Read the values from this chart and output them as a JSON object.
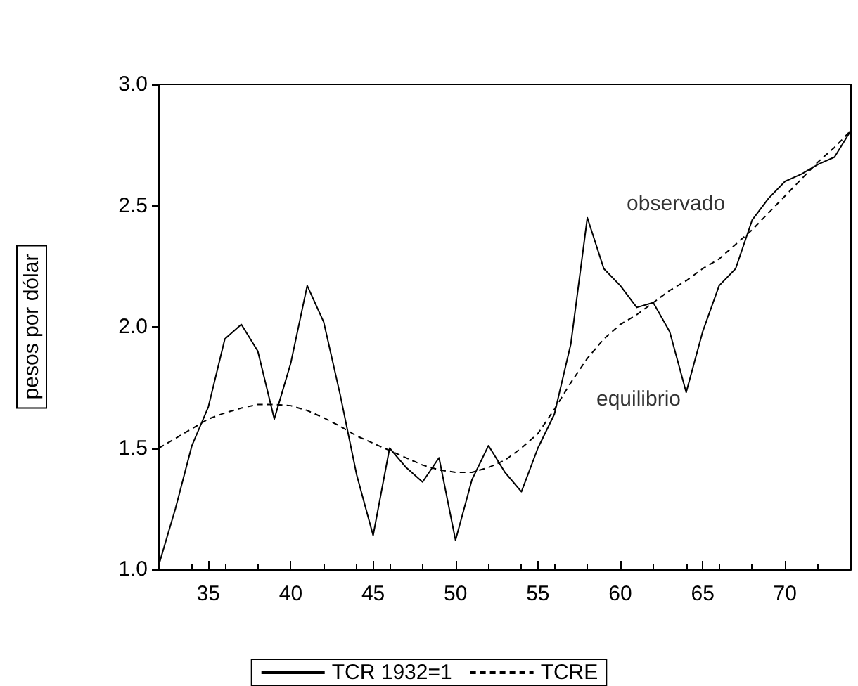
{
  "chart_data": {
    "type": "line",
    "ylabel": "pesos por dólar",
    "x": [
      32,
      33,
      34,
      35,
      36,
      37,
      38,
      39,
      40,
      41,
      42,
      43,
      44,
      45,
      46,
      47,
      48,
      49,
      50,
      51,
      52,
      53,
      54,
      55,
      56,
      57,
      58,
      59,
      60,
      61,
      62,
      63,
      64,
      65,
      66,
      67,
      68,
      69,
      70,
      71,
      72,
      73,
      74
    ],
    "series": [
      {
        "name": "TCR 1932=1",
        "color": "#000000",
        "line_style": "solid",
        "values": [
          1.02,
          1.25,
          1.51,
          1.67,
          1.95,
          2.01,
          1.9,
          1.62,
          1.85,
          2.17,
          2.02,
          1.72,
          1.39,
          1.14,
          1.5,
          1.42,
          1.36,
          1.46,
          1.12,
          1.37,
          1.51,
          1.4,
          1.32,
          1.5,
          1.64,
          1.93,
          2.45,
          2.24,
          2.17,
          2.08,
          2.1,
          1.98,
          1.73,
          1.98,
          2.17,
          2.24,
          2.44,
          2.53,
          2.6,
          2.63,
          2.67,
          2.7,
          2.81
        ]
      },
      {
        "name": "TCRE",
        "color": "#000000",
        "line_style": "dashed",
        "values": [
          1.5,
          1.54,
          1.58,
          1.62,
          1.645,
          1.665,
          1.68,
          1.68,
          1.675,
          1.655,
          1.625,
          1.59,
          1.55,
          1.52,
          1.49,
          1.46,
          1.43,
          1.41,
          1.4,
          1.4,
          1.42,
          1.45,
          1.5,
          1.56,
          1.66,
          1.77,
          1.87,
          1.95,
          2.01,
          2.05,
          2.1,
          2.15,
          2.19,
          2.24,
          2.28,
          2.34,
          2.4,
          2.47,
          2.54,
          2.61,
          2.68,
          2.74,
          2.81
        ]
      }
    ],
    "xlim": [
      32,
      74
    ],
    "xticks": [
      35,
      40,
      45,
      50,
      55,
      60,
      65,
      70
    ],
    "ylim": [
      1,
      3
    ],
    "yticks": [
      {
        "value": 1,
        "label": "1.0"
      },
      {
        "value": 1.5,
        "label": "1.5"
      },
      {
        "value": 2,
        "label": "2.0"
      },
      {
        "value": 2.5,
        "label": "2.5"
      },
      {
        "value": 3,
        "label": "3.0"
      }
    ],
    "annotations": [
      {
        "text": "observado",
        "x": 58,
        "y": 2.45
      },
      {
        "text": "equilibrio",
        "x": 60,
        "y": 2.01
      }
    ],
    "grid": false,
    "legend": "bottom",
    "marker": "none"
  }
}
